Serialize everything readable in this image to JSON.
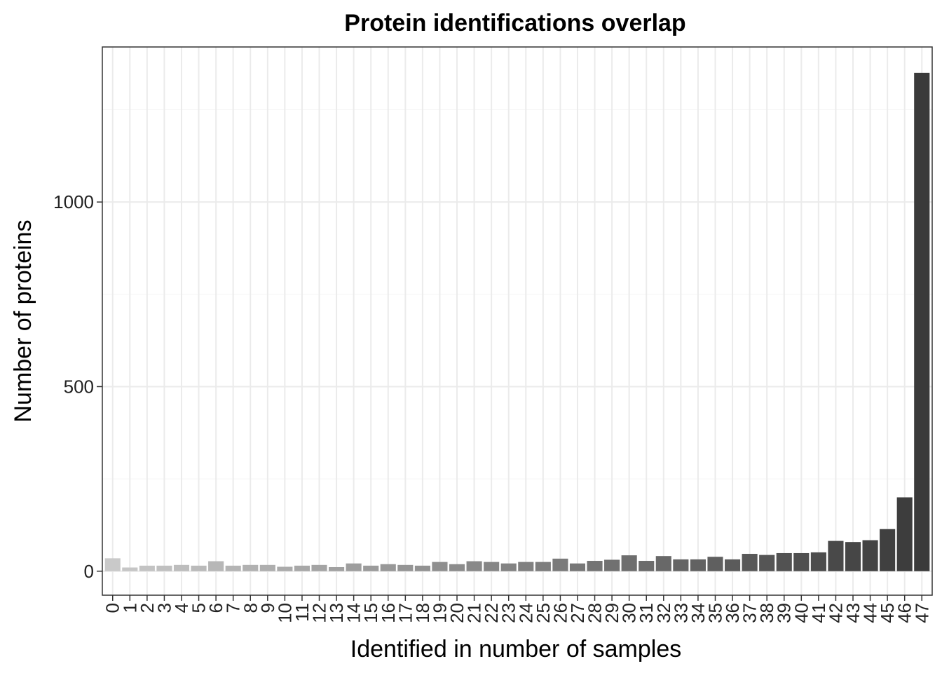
{
  "chart_data": {
    "type": "bar",
    "title": "Protein identifications overlap",
    "xlabel": "Identified in number of samples",
    "ylabel": "Number of proteins",
    "categories": [
      "0",
      "1",
      "2",
      "3",
      "4",
      "5",
      "6",
      "7",
      "8",
      "9",
      "10",
      "11",
      "12",
      "13",
      "14",
      "15",
      "16",
      "17",
      "18",
      "19",
      "20",
      "21",
      "22",
      "23",
      "24",
      "25",
      "26",
      "27",
      "28",
      "29",
      "30",
      "31",
      "32",
      "33",
      "34",
      "35",
      "36",
      "37",
      "38",
      "39",
      "40",
      "41",
      "42",
      "43",
      "44",
      "45",
      "46",
      "47"
    ],
    "values": [
      35,
      10,
      15,
      15,
      17,
      15,
      27,
      15,
      17,
      17,
      12,
      15,
      17,
      11,
      21,
      15,
      19,
      17,
      15,
      25,
      19,
      27,
      25,
      21,
      25,
      25,
      34,
      21,
      28,
      31,
      43,
      28,
      41,
      32,
      32,
      39,
      32,
      47,
      44,
      49,
      49,
      51,
      82,
      79,
      84,
      114,
      200,
      1350
    ],
    "ylim": [
      -65,
      1420
    ],
    "yticks": [
      0,
      500,
      1000
    ],
    "ytick_labels": [
      "0",
      "500",
      "1000"
    ],
    "grid": true,
    "colors": {
      "panel_border": "#333333",
      "grid_major": "#ebebeb",
      "grid_minor": "#f5f5f5",
      "bar_light": "#c9c9c9",
      "bar_dark": "#3a3a3a",
      "axis_text": "#222222"
    }
  }
}
